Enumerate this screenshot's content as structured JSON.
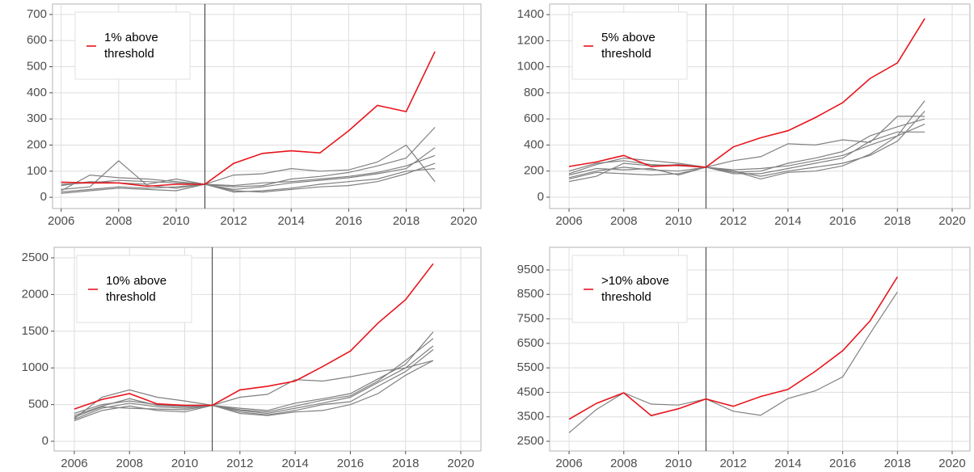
{
  "chart_data": [
    {
      "type": "line",
      "x": [
        2006,
        2007,
        2008,
        2009,
        2010,
        2011,
        2012,
        2013,
        2014,
        2015,
        2016,
        2017,
        2018,
        2019
      ],
      "xlim": [
        2005.7,
        2020.6
      ],
      "xticks": [
        2006,
        2008,
        2010,
        2012,
        2014,
        2016,
        2018,
        2020
      ],
      "ylim": [
        -43,
        740
      ],
      "yticks": [
        0,
        100,
        200,
        300,
        400,
        500,
        600,
        700
      ],
      "grid": true,
      "vline": 2011,
      "series": [
        {
          "color": "#808080",
          "values": [
            30,
            40,
            140,
            45,
            35,
            50,
            85,
            90,
            110,
            100,
            105,
            135,
            200,
            60
          ]
        },
        {
          "color": "#808080",
          "values": [
            25,
            85,
            75,
            70,
            60,
            50,
            40,
            45,
            70,
            80,
            95,
            120,
            150,
            268
          ]
        },
        {
          "color": "#808080",
          "values": [
            45,
            60,
            55,
            50,
            70,
            50,
            30,
            40,
            55,
            65,
            75,
            90,
            110,
            190
          ]
        },
        {
          "color": "#808080",
          "values": [
            20,
            30,
            40,
            35,
            40,
            50,
            25,
            20,
            30,
            40,
            45,
            60,
            90,
            130
          ]
        },
        {
          "color": "#808080",
          "values": [
            50,
            55,
            65,
            60,
            55,
            50,
            45,
            55,
            60,
            70,
            80,
            95,
            120,
            160
          ]
        },
        {
          "color": "#808080",
          "values": [
            15,
            25,
            35,
            30,
            25,
            50,
            20,
            25,
            35,
            50,
            60,
            70,
            100,
            110
          ]
        },
        {
          "name": "1% above threshold",
          "color": "#e8141c",
          "values": [
            58,
            55,
            55,
            42,
            50,
            50,
            130,
            168,
            178,
            170,
            255,
            352,
            328,
            558
          ]
        }
      ]
    },
    {
      "type": "line",
      "x": [
        2006,
        2007,
        2008,
        2009,
        2010,
        2011,
        2012,
        2013,
        2014,
        2015,
        2016,
        2017,
        2018,
        2019
      ],
      "xlim": [
        2005.29,
        2020.65
      ],
      "xticks": [
        2006,
        2008,
        2010,
        2012,
        2014,
        2016,
        2018,
        2020
      ],
      "ylim": [
        -87,
        1481
      ],
      "yticks": [
        0,
        200,
        400,
        600,
        800,
        1000,
        1200,
        1400
      ],
      "grid": true,
      "vline": 2011,
      "series": [
        {
          "color": "#808080",
          "values": [
            120,
            160,
            260,
            240,
            250,
            230,
            200,
            140,
            190,
            200,
            240,
            330,
            470,
            740
          ]
        },
        {
          "color": "#808080",
          "values": [
            180,
            250,
            300,
            280,
            260,
            230,
            280,
            310,
            410,
            400,
            440,
            420,
            620,
            620
          ]
        },
        {
          "color": "#808080",
          "values": [
            150,
            200,
            230,
            210,
            200,
            230,
            180,
            180,
            220,
            260,
            300,
            430,
            500,
            500
          ]
        },
        {
          "color": "#808080",
          "values": [
            200,
            260,
            280,
            250,
            240,
            230,
            210,
            220,
            240,
            280,
            320,
            400,
            470,
            560
          ]
        },
        {
          "color": "#808080",
          "values": [
            140,
            190,
            180,
            170,
            180,
            230,
            200,
            160,
            200,
            230,
            260,
            320,
            430,
            660
          ]
        },
        {
          "color": "#808080",
          "values": [
            170,
            220,
            210,
            220,
            170,
            230,
            190,
            200,
            260,
            300,
            350,
            470,
            540,
            600
          ]
        },
        {
          "name": "5% above threshold",
          "color": "#e8141c",
          "values": [
            235,
            270,
            320,
            235,
            245,
            230,
            385,
            455,
            510,
            610,
            725,
            910,
            1030,
            1370
          ]
        }
      ]
    },
    {
      "type": "line",
      "x": [
        2006,
        2007,
        2008,
        2009,
        2010,
        2011,
        2012,
        2013,
        2014,
        2015,
        2016,
        2017,
        2018,
        2019
      ],
      "xlim": [
        2005.27,
        2020.73
      ],
      "xticks": [
        2006,
        2008,
        2010,
        2012,
        2014,
        2016,
        2018,
        2020
      ],
      "ylim": [
        -132,
        2643
      ],
      "yticks": [
        0,
        500,
        1000,
        1500,
        2000,
        2500
      ],
      "grid": true,
      "vline": 2011,
      "series": [
        {
          "color": "#808080",
          "values": [
            310,
            600,
            700,
            600,
            550,
            490,
            600,
            640,
            840,
            820,
            880,
            950,
            1000,
            1100
          ]
        },
        {
          "color": "#808080",
          "values": [
            280,
            420,
            480,
            420,
            400,
            490,
            380,
            350,
            400,
            420,
            500,
            650,
            900,
            1100
          ]
        },
        {
          "color": "#808080",
          "values": [
            350,
            480,
            580,
            490,
            470,
            490,
            420,
            380,
            450,
            520,
            600,
            800,
            1000,
            1300
          ]
        },
        {
          "color": "#808080",
          "values": [
            300,
            450,
            520,
            470,
            450,
            490,
            450,
            420,
            520,
            580,
            650,
            850,
            1050,
            1490
          ]
        },
        {
          "color": "#808080",
          "values": [
            380,
            500,
            550,
            500,
            480,
            490,
            400,
            360,
            420,
            500,
            540,
            750,
            950,
            1250
          ]
        },
        {
          "color": "#808080",
          "values": [
            330,
            470,
            450,
            440,
            430,
            490,
            430,
            400,
            480,
            560,
            620,
            820,
            1100,
            1400
          ]
        },
        {
          "name": "10% above threshold",
          "color": "#e8141c",
          "values": [
            440,
            570,
            650,
            510,
            490,
            490,
            700,
            750,
            820,
            1020,
            1230,
            1610,
            1930,
            2420
          ]
        }
      ]
    },
    {
      "type": "line",
      "x": [
        2006,
        2007,
        2008,
        2009,
        2010,
        2011,
        2012,
        2013,
        2014,
        2015,
        2016,
        2017,
        2018
      ],
      "xlim": [
        2005.29,
        2020.65
      ],
      "xticks": [
        2006,
        2008,
        2010,
        2012,
        2014,
        2016,
        2018,
        2020
      ],
      "ylim": [
        2104,
        10424
      ],
      "yticks": [
        2500,
        3500,
        4500,
        5500,
        6500,
        7500,
        8500,
        9500
      ],
      "grid": true,
      "vline": 2011,
      "series": [
        {
          "color": "#808080",
          "values": [
            2850,
            3800,
            4480,
            4020,
            3980,
            4230,
            3730,
            3560,
            4250,
            4560,
            5130,
            6900,
            8600
          ]
        },
        {
          "name": ">10% above threshold",
          "color": "#e8141c",
          "values": [
            3400,
            4050,
            4480,
            3550,
            3830,
            4230,
            3930,
            4330,
            4620,
            5360,
            6200,
            7420,
            9220
          ]
        }
      ]
    }
  ]
}
